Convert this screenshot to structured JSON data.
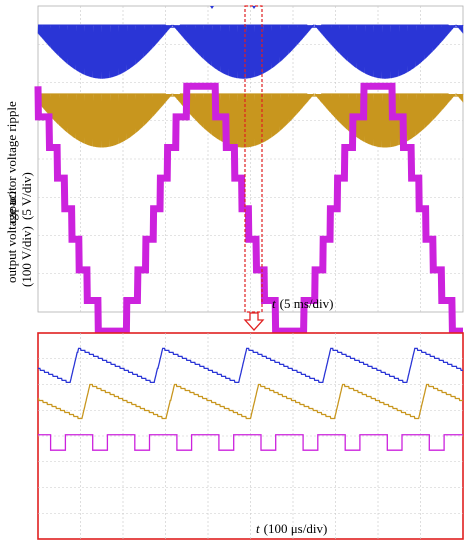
{
  "chart_data": [
    {
      "type": "line",
      "title": "",
      "ylabel_top": "capacitor voltage ripple",
      "ylabel_top_units": "(5 V/div)",
      "ylabel_bottom": "output voltage u",
      "ylabel_bottom_sub": "O",
      "ylabel_bottom_units": "(100 V/div)",
      "xlabel_var": "t",
      "xlabel_units": "(5 ms/div)",
      "x_divisions": 10,
      "y_divisions": 8,
      "grid": true,
      "series": [
        {
          "name": "",
          "color": "#2a35d6",
          "kind": "ripple_envelope",
          "periods": 3,
          "offset_div": 0.2,
          "amplitude_div": 1.4
        },
        {
          "name": "",
          "color": "#c8961e",
          "kind": "ripple_envelope",
          "periods": 3,
          "offset_div": 2.0,
          "amplitude_div": 1.4
        },
        {
          "name": "",
          "color": "#cc22dd",
          "kind": "staircase_sine",
          "periods": 2.5,
          "levels": 9,
          "center_div": 5.3,
          "amplitude_div": 3.2
        }
      ]
    },
    {
      "type": "line",
      "title": "",
      "xlabel_var": "t",
      "xlabel_units": "(100 μs/div)",
      "x_divisions": 10,
      "y_divisions": 8,
      "grid": true,
      "zoom_of": "dashed window in upper chart",
      "series": [
        {
          "name": "",
          "color": "#2a35d6",
          "kind": "sawtooth",
          "cycles": 5
        },
        {
          "name": "",
          "color": "#c8961e",
          "kind": "sawtooth",
          "cycles": 5
        },
        {
          "name": "",
          "color": "#cc22dd",
          "kind": "pwm_pulses",
          "cycles": 10
        }
      ]
    }
  ],
  "colors": {
    "zoom_box": "#e02020",
    "arrow": "#e02020"
  }
}
